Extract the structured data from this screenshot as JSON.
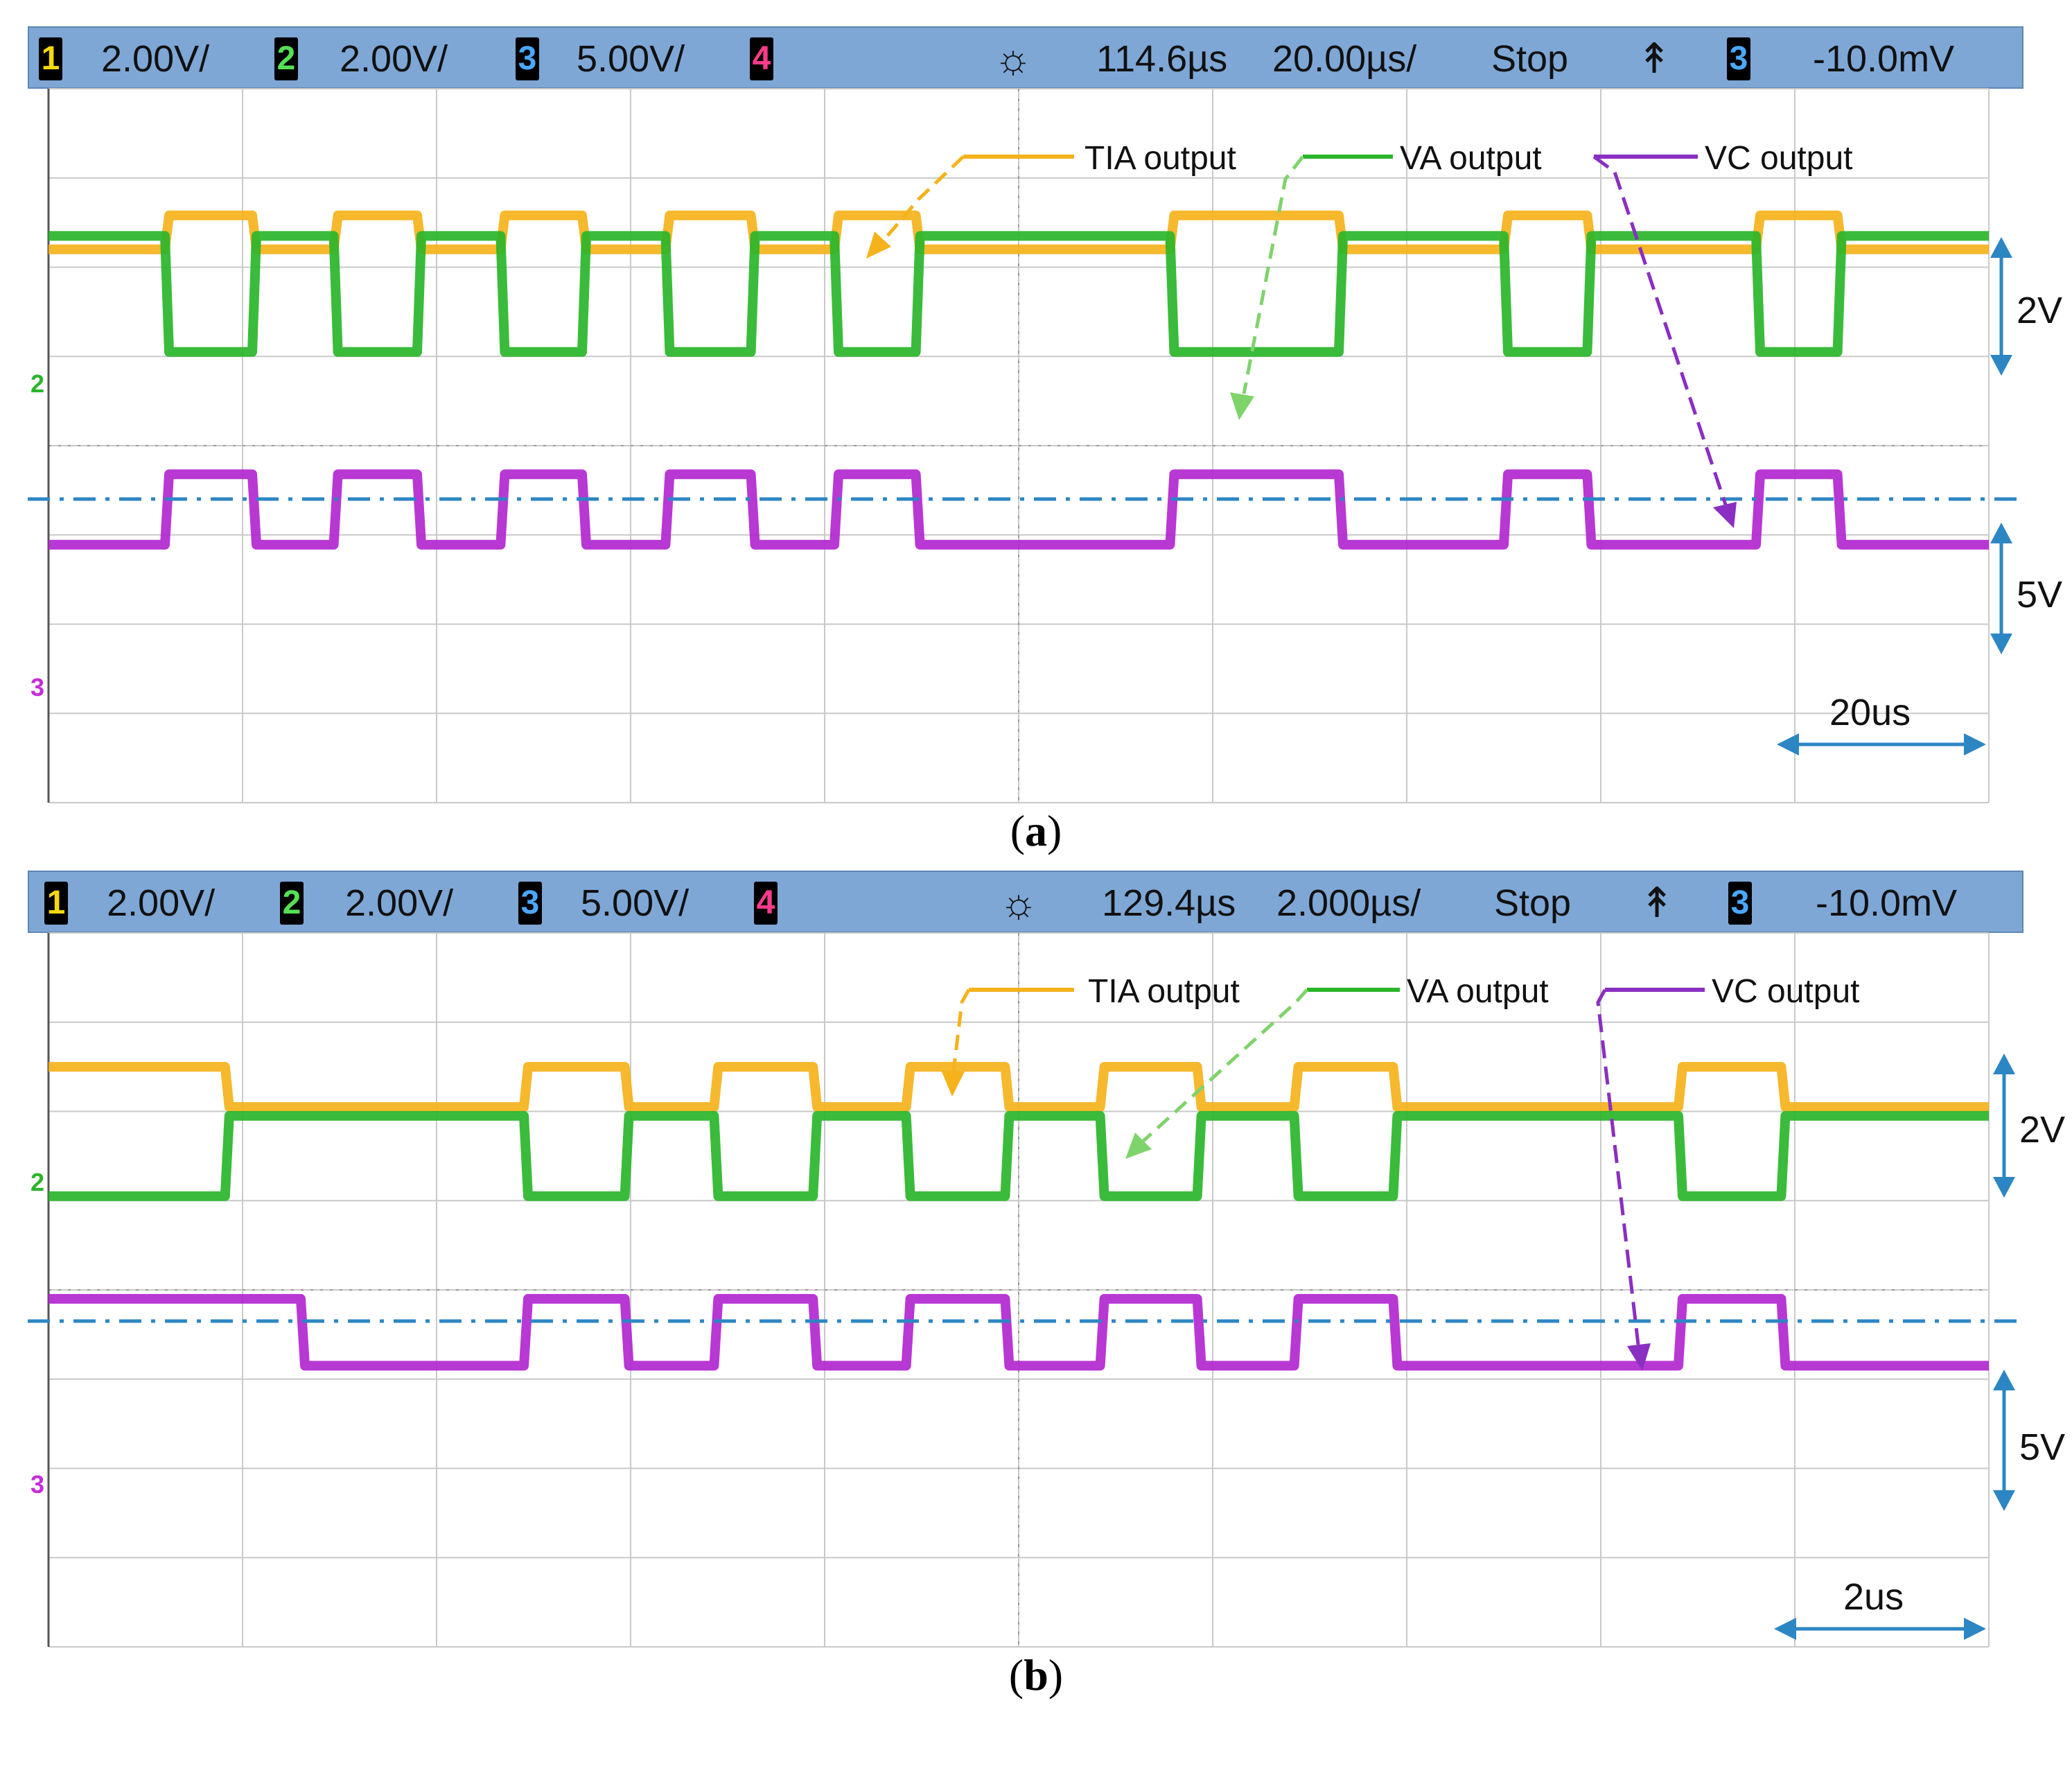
{
  "colors": {
    "header_bg": "#7ea7d6",
    "ch1": "#f5b21b",
    "ch2": "#2ab52a",
    "ch3": "#b227cf",
    "ch4": "#ff2a7a",
    "divider": "#2d86c4",
    "scale_arrow": "#2d86c4",
    "grid": "#c9c9c9"
  },
  "panels": [
    {
      "id": "a",
      "caption_paren_open": "(",
      "caption_letter": "a",
      "caption_paren_close": ")",
      "header": {
        "ch1_num": "1",
        "ch1_scale": "2.00V/",
        "ch2_num": "2",
        "ch2_scale": "2.00V/",
        "ch3_num": "3",
        "ch3_scale": "5.00V/",
        "ch4_num": "4",
        "trigger_icon": "sun-icon",
        "delay": "114.6µs",
        "timebase": "20.00µs/",
        "run_state": "Stop",
        "edge_icon": "rising-edge-icon",
        "trig_source": "3",
        "trig_level": "-10.0mV"
      },
      "legend": {
        "tia": "TIA output",
        "va": "VA  output",
        "vc": "VC output"
      },
      "ch2_marker": "2",
      "ch3_marker": "3",
      "scale_labels": {
        "top": "2V",
        "bottom": "5V",
        "time": "20us"
      }
    },
    {
      "id": "b",
      "caption_paren_open": "(",
      "caption_letter": "b",
      "caption_paren_close": ")",
      "header": {
        "ch1_num": "1",
        "ch1_scale": "2.00V/",
        "ch2_num": "2",
        "ch2_scale": "2.00V/",
        "ch3_num": "3",
        "ch3_scale": "5.00V/",
        "ch4_num": "4",
        "trigger_icon": "sun-icon",
        "delay": "129.4µs",
        "timebase": "2.000µs/",
        "run_state": "Stop",
        "edge_icon": "rising-edge-icon",
        "trig_source": "3",
        "trig_level": "-10.0mV"
      },
      "legend": {
        "tia": "TIA output",
        "va": "VA  output",
        "vc": "VC output"
      },
      "ch2_marker": "2",
      "ch3_marker": "3",
      "scale_labels": {
        "top": "2V",
        "bottom": "5V",
        "time": "2us"
      }
    }
  ],
  "chart_data": [
    {
      "type": "line",
      "title": "(a)",
      "x_unit": "div",
      "xlim": [
        0,
        10
      ],
      "y_unit": "div",
      "ylim": [
        -4,
        4
      ],
      "series": [
        {
          "name": "TIA output",
          "levels": {
            "high": 2.58,
            "low": 2.2
          },
          "edges": [
            0.6,
            1.05,
            1.47,
            1.9,
            2.33,
            2.75,
            3.18,
            3.62,
            4.05,
            4.47,
            5.78,
            6.65,
            7.5,
            7.93,
            8.8,
            9.22
          ],
          "start_state": "low",
          "end": 10
        },
        {
          "name": "VA output",
          "levels": {
            "high": 2.35,
            "low": 1.05
          },
          "edges": [
            0.6,
            1.05,
            1.47,
            1.9,
            2.33,
            2.75,
            3.18,
            3.62,
            4.05,
            4.47,
            5.78,
            6.65,
            7.5,
            7.93,
            8.8,
            9.22
          ],
          "start_state": "high",
          "end": 10
        },
        {
          "name": "VC output",
          "levels": {
            "high": -0.32,
            "low": -1.11
          },
          "edges": [
            0.6,
            1.05,
            1.47,
            1.9,
            2.33,
            2.75,
            3.18,
            3.62,
            4.05,
            4.47,
            5.78,
            6.65,
            7.5,
            7.93,
            8.8,
            9.22
          ],
          "start_state": "low",
          "end": 10
        }
      ]
    },
    {
      "type": "line",
      "title": "(b)",
      "x_unit": "div",
      "xlim": [
        0,
        10
      ],
      "y_unit": "div",
      "ylim": [
        -4,
        4
      ],
      "series": [
        {
          "name": "TIA output",
          "levels": {
            "high": 2.5,
            "low": 2.05
          },
          "edges": [
            0.91,
            2.45,
            2.97,
            3.43,
            3.94,
            4.42,
            4.93,
            5.42,
            5.92,
            6.42,
            6.93,
            8.4,
            8.93,
            10
          ],
          "start_state": "high",
          "end": 10
        },
        {
          "name": "VA output",
          "levels": {
            "high": 1.95,
            "low": 1.05
          },
          "edges": [
            0.91,
            2.45,
            2.97,
            3.43,
            3.94,
            4.42,
            4.93,
            5.42,
            5.92,
            6.42,
            6.93,
            8.4,
            8.93,
            10
          ],
          "start_state": "low",
          "end": 10
        },
        {
          "name": "VC output",
          "levels": {
            "high": -0.1,
            "low": -0.85
          },
          "edges": [
            1.3,
            2.45,
            2.97,
            3.43,
            3.94,
            4.42,
            4.93,
            5.42,
            5.92,
            6.42,
            6.93,
            8.4,
            8.93,
            10
          ],
          "start_state": "high",
          "end": 10
        }
      ]
    }
  ]
}
